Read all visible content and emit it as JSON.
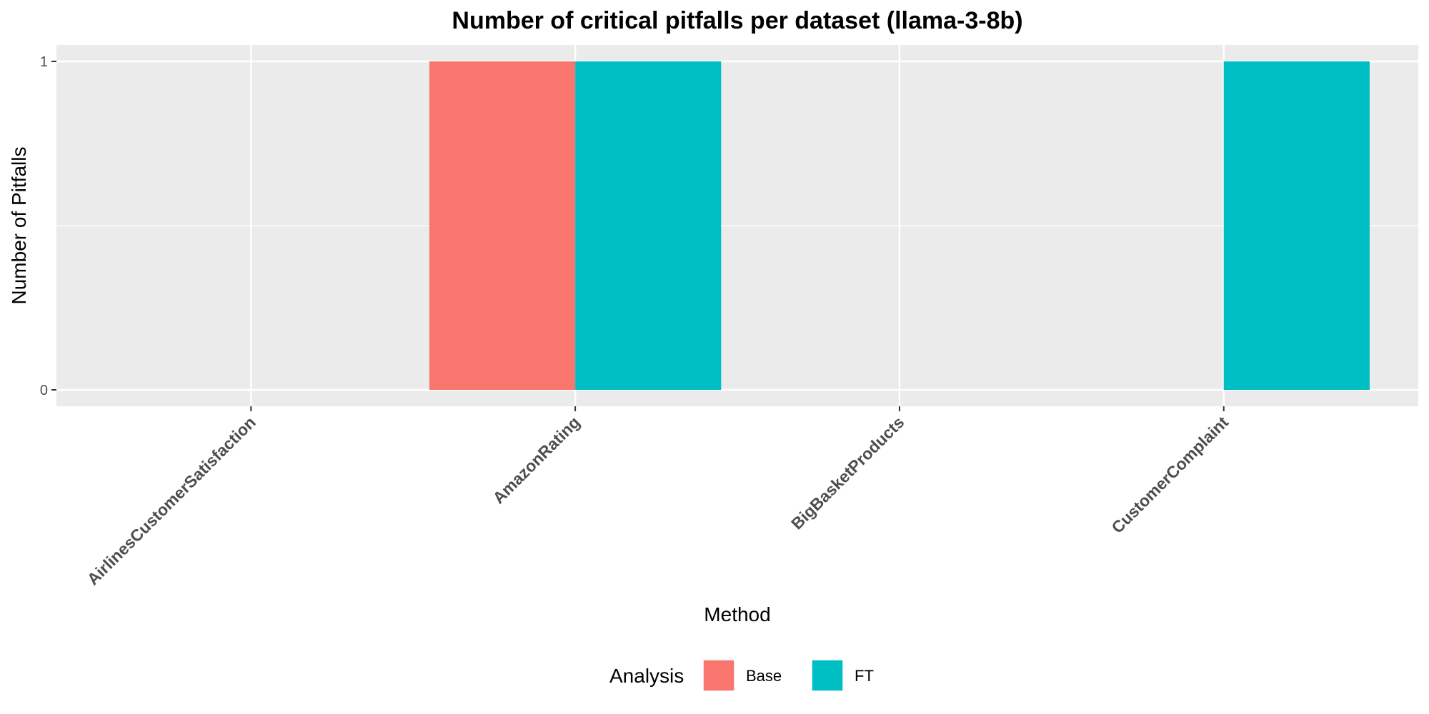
{
  "chart_data": {
    "type": "bar",
    "title": "Number of critical pitfalls per dataset (llama-3-8b)",
    "xlabel": "Method",
    "ylabel": "Number of Pitfalls",
    "categories": [
      "AirlinesCustomerSatisfaction",
      "AmazonRating",
      "BigBasketProducts",
      "CustomerComplaint"
    ],
    "series": [
      {
        "name": "Base",
        "color": "#F8766D",
        "values": [
          0,
          1,
          0,
          0
        ]
      },
      {
        "name": "FT",
        "color": "#00BFC4",
        "values": [
          0,
          1,
          0,
          1
        ]
      }
    ],
    "ylim": [
      0,
      1
    ],
    "yticks": [
      0,
      1
    ],
    "ytick_labels": [
      "0",
      "1"
    ],
    "grid": true,
    "panel_background": "#EBEBEB",
    "legend": {
      "title": "Analysis",
      "position": "bottom"
    }
  }
}
